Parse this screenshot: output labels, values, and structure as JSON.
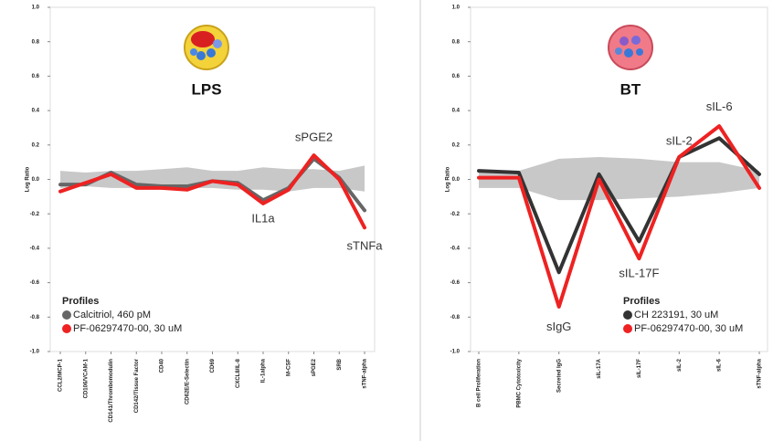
{
  "chart_data": [
    {
      "type": "line",
      "title": "LPS",
      "y_label": "Log Ratio",
      "categories": [
        "CCL2/MCP-1",
        "CD106/VCAM-1",
        "CD141/Thrombomodulin",
        "CD142/Tissue Factor",
        "CD40",
        "CD62E/E-Selectin",
        "CD69",
        "CXCL8/IL-8",
        "IL-1alpha",
        "M-CSF",
        "sPGE2",
        "SRB",
        "sTNF-alpha"
      ],
      "band_upper": [
        0.05,
        0.04,
        0.05,
        0.05,
        0.06,
        0.07,
        0.05,
        0.05,
        0.07,
        0.06,
        0.06,
        0.05,
        0.08
      ],
      "band_lower": [
        -0.05,
        -0.04,
        -0.05,
        -0.05,
        -0.06,
        -0.05,
        -0.05,
        -0.06,
        -0.06,
        -0.07,
        -0.05,
        -0.05,
        -0.07
      ],
      "series": [
        {
          "name": "Calcitriol, 460 pM",
          "color": "#666666",
          "values": [
            -0.03,
            -0.03,
            0.04,
            -0.03,
            -0.04,
            -0.04,
            -0.01,
            -0.02,
            -0.12,
            -0.05,
            0.12,
            0.01,
            -0.18
          ]
        },
        {
          "name": "PF-06297470-00, 30 uM",
          "color": "#ee2222",
          "values": [
            -0.07,
            -0.02,
            0.03,
            -0.05,
            -0.05,
            -0.06,
            -0.01,
            -0.03,
            -0.14,
            -0.06,
            0.14,
            0.0,
            -0.28
          ]
        }
      ],
      "legend_title": "Profiles",
      "annotations": [
        {
          "text": "sPGE2",
          "x": "sPGE2",
          "y": 0.24
        },
        {
          "text": "IL1a",
          "x": "IL-1alpha",
          "y": -0.23
        },
        {
          "text": "sTNFa",
          "x": "sTNF-alpha",
          "y": -0.39
        }
      ],
      "ylim": [
        -1.0,
        1.0
      ],
      "yticks": [
        {
          "value": -1.0,
          "label": "-1.0"
        },
        -0.8,
        -0.6,
        -0.4,
        -0.2,
        {
          "value": 0.0,
          "label": "0.0"
        },
        0.2,
        0.4,
        0.6,
        0.8,
        {
          "value": 1.0,
          "label": "1.0"
        }
      ]
    },
    {
      "type": "line",
      "title": "BT",
      "y_label": "Log Ratio",
      "categories": [
        "B cell Proliferation",
        "PBMC Cytotoxicity",
        "Secreted IgG",
        "sIL-17A",
        "sIL-17F",
        "sIL-2",
        "sIL-6",
        "sTNF-alpha"
      ],
      "band_upper": [
        0.05,
        0.05,
        0.12,
        0.13,
        0.12,
        0.1,
        0.1,
        0.05
      ],
      "band_lower": [
        -0.05,
        -0.05,
        -0.12,
        -0.12,
        -0.11,
        -0.1,
        -0.08,
        -0.05
      ],
      "series": [
        {
          "name": "CH 223191, 30 uM",
          "color": "#333333",
          "values": [
            0.05,
            0.04,
            -0.54,
            0.03,
            -0.36,
            0.13,
            0.24,
            0.03
          ]
        },
        {
          "name": "PF-06297470-00, 30 uM",
          "color": "#ee2222",
          "values": [
            0.01,
            0.01,
            -0.74,
            0.0,
            -0.46,
            0.13,
            0.31,
            -0.05
          ]
        }
      ],
      "legend_title": "Profiles",
      "annotations": [
        {
          "text": "sIL-6",
          "x": "sIL-6",
          "y": 0.42
        },
        {
          "text": "sIL-2",
          "x": "sIL-2",
          "y": 0.22
        },
        {
          "text": "sIL-17F",
          "x": "sIL-17F",
          "y": -0.55
        },
        {
          "text": "sIgG",
          "x": "Secreted IgG",
          "y": -0.86
        }
      ],
      "ylim": [
        -1.0,
        1.0
      ],
      "yticks": [
        {
          "value": -1.0,
          "label": "-1.0"
        },
        -0.8,
        -0.6,
        -0.4,
        -0.2,
        {
          "value": 0.0,
          "label": "0.0"
        },
        0.2,
        0.4,
        0.6,
        0.8,
        {
          "value": 1.0,
          "label": "1.0"
        }
      ]
    }
  ]
}
